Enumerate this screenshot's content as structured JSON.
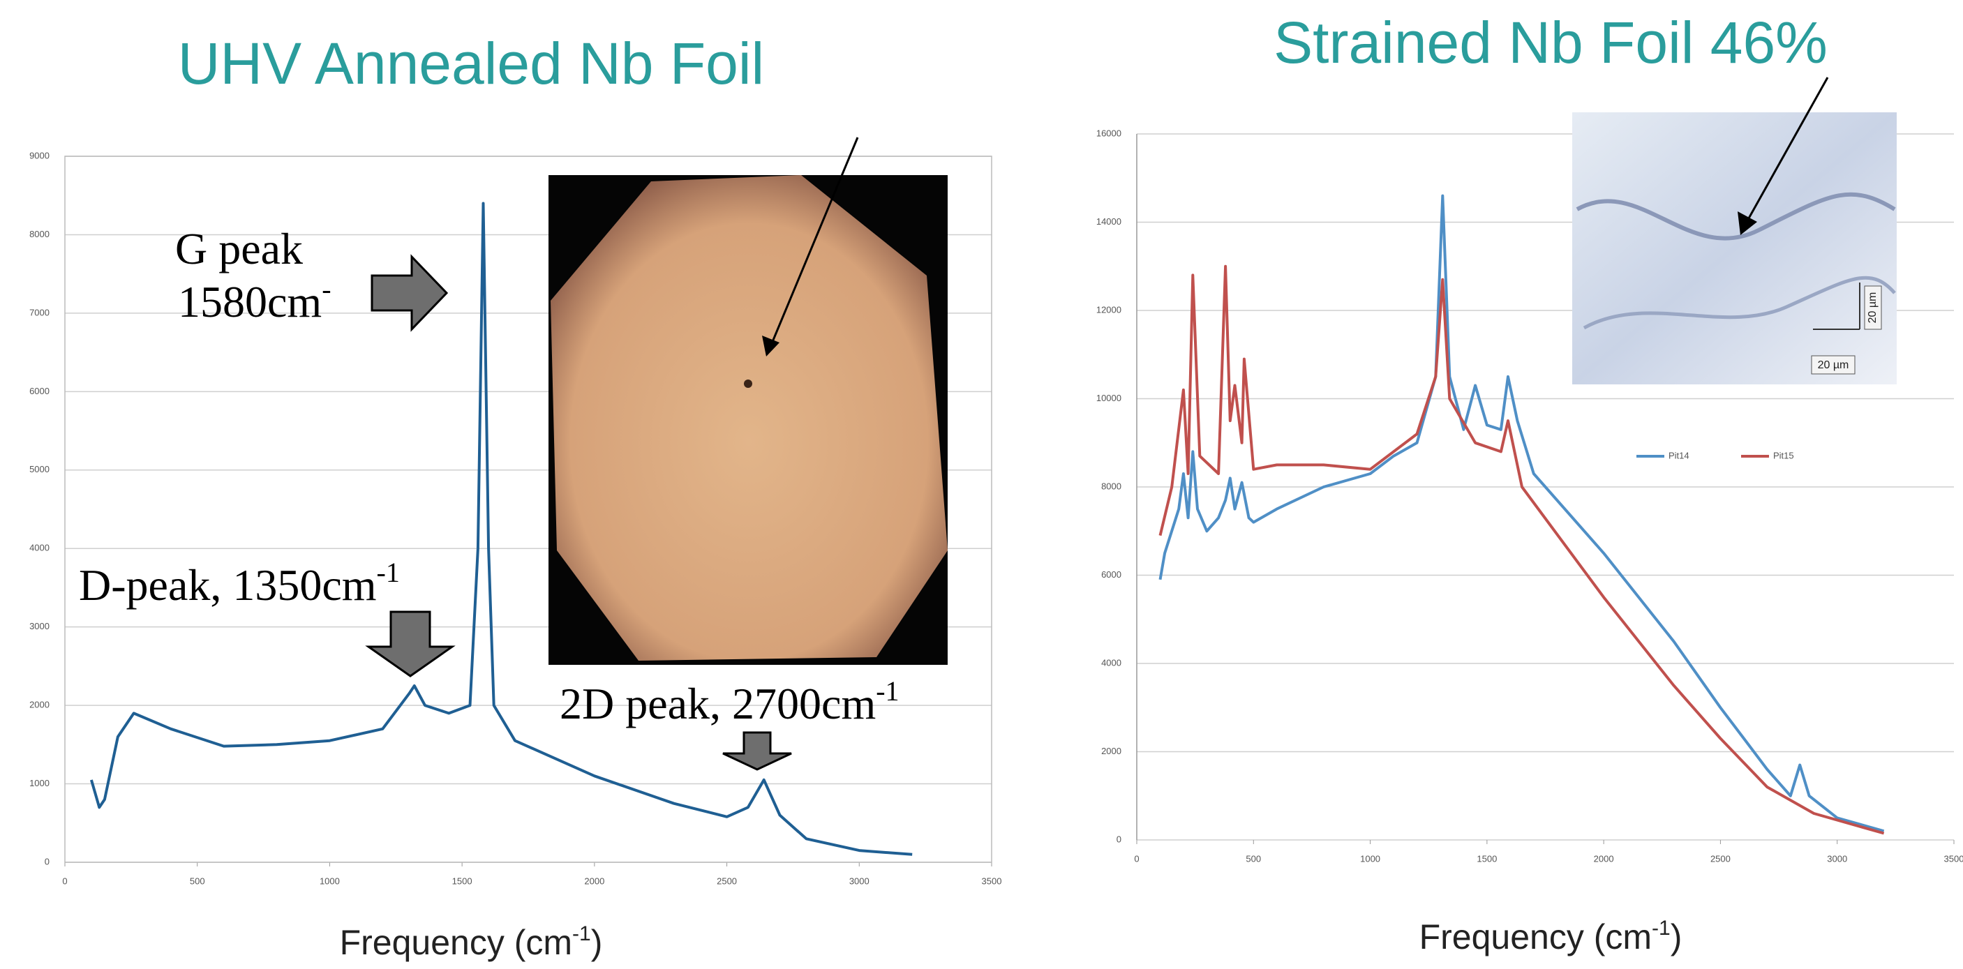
{
  "chart_data": [
    {
      "type": "line",
      "title": "UHV Annealed Nb Foil",
      "xlabel": {
        "text": "Frequency (cm",
        "sup": "-1",
        "suffix": ")"
      },
      "color": "#1f5f93",
      "x": [
        100,
        130,
        150,
        200,
        260,
        400,
        600,
        800,
        1000,
        1200,
        1300,
        1320,
        1360,
        1450,
        1530,
        1560,
        1580,
        1600,
        1620,
        1700,
        2000,
        2300,
        2500,
        2580,
        2640,
        2700,
        2800,
        3000,
        3200
      ],
      "values": [
        1050,
        700,
        800,
        1600,
        1900,
        1700,
        1480,
        1500,
        1550,
        1700,
        2150,
        2250,
        2000,
        1900,
        2000,
        4000,
        8400,
        4000,
        2000,
        1550,
        1100,
        750,
        580,
        700,
        1050,
        600,
        300,
        150,
        100
      ],
      "xlim": [
        0,
        3500
      ],
      "xticks": [
        0,
        500,
        1000,
        1500,
        2000,
        2500,
        3000,
        3500
      ],
      "ylim": [
        0,
        9000
      ],
      "yticks": [
        0,
        1000,
        2000,
        3000,
        4000,
        5000,
        6000,
        7000,
        8000,
        9000
      ],
      "grid": true,
      "annotations": [
        {
          "text": "G peak"
        },
        {
          "text": "1580cm",
          "sup": "-"
        },
        {
          "text": "D-peak, 1350cm",
          "sup": "-1"
        },
        {
          "text": "2D peak, 2700cm",
          "sup": "-1"
        }
      ]
    },
    {
      "type": "line",
      "title": "Strained Nb Foil 46%",
      "xlabel": {
        "text": "Frequency (cm",
        "sup": "-1",
        "suffix": ")"
      },
      "series": [
        {
          "name": "Pit14",
          "color": "#4f8fc6",
          "x": [
            100,
            120,
            180,
            200,
            220,
            240,
            260,
            300,
            350,
            380,
            400,
            420,
            450,
            480,
            500,
            600,
            800,
            1000,
            1100,
            1200,
            1280,
            1310,
            1340,
            1400,
            1450,
            1500,
            1560,
            1590,
            1630,
            1700,
            2000,
            2300,
            2500,
            2600,
            2700,
            2800,
            2840,
            2880,
            3000,
            3200
          ],
          "values": [
            5900,
            6500,
            7500,
            8300,
            7300,
            8800,
            7500,
            7000,
            7300,
            7700,
            8200,
            7500,
            8100,
            7300,
            7200,
            7500,
            8000,
            8300,
            8700,
            9000,
            10500,
            14600,
            10500,
            9300,
            10300,
            9400,
            9300,
            10500,
            9500,
            8300,
            6500,
            4500,
            3000,
            2300,
            1600,
            1000,
            1700,
            1000,
            500,
            200
          ]
        },
        {
          "name": "Pit15",
          "color": "#c0504d",
          "x": [
            100,
            150,
            200,
            220,
            240,
            270,
            350,
            380,
            400,
            420,
            450,
            460,
            500,
            600,
            800,
            1000,
            1200,
            1280,
            1310,
            1340,
            1450,
            1560,
            1590,
            1650,
            2000,
            2300,
            2500,
            2700,
            2900,
            3200
          ],
          "values": [
            6900,
            8000,
            10200,
            8300,
            12800,
            8700,
            8300,
            13000,
            9500,
            10300,
            9000,
            10900,
            8400,
            8500,
            8500,
            8400,
            9200,
            10500,
            12700,
            10000,
            9000,
            8800,
            9500,
            8000,
            5500,
            3500,
            2300,
            1200,
            600,
            150
          ]
        }
      ],
      "xlim": [
        0,
        3500
      ],
      "xticks": [
        0,
        500,
        1000,
        1500,
        2000,
        2500,
        3000,
        3500
      ],
      "ylim": [
        0,
        16000
      ],
      "yticks": [
        0,
        2000,
        4000,
        6000,
        8000,
        10000,
        12000,
        14000,
        16000
      ],
      "grid": true,
      "legend": "center",
      "inset_labels": [
        "20 µm",
        "20 µm"
      ]
    }
  ]
}
